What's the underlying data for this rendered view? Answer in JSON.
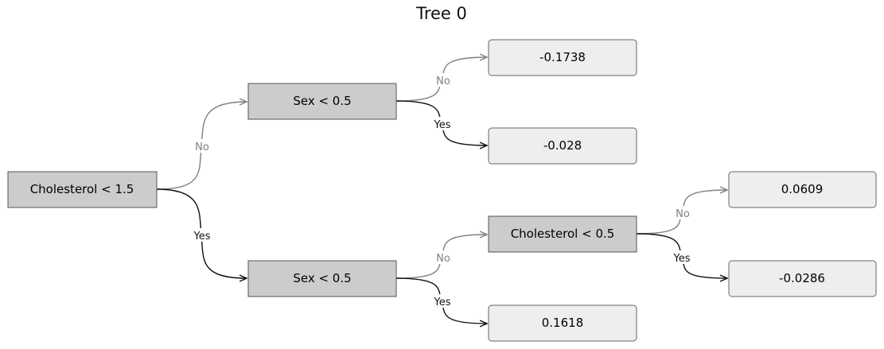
{
  "title": "Tree 0",
  "colors": {
    "split_fill": "#cccccc",
    "leaf_fill": "#eeeeee",
    "edge_no": "#808080",
    "edge_yes": "#111111"
  },
  "nodes": {
    "root": "Cholesterol < 1.5",
    "upper_split": "Sex < 0.5",
    "lower_split": "Sex < 0.5",
    "mid_split": "Cholesterol < 0.5",
    "leaf_1": "-0.1738",
    "leaf_2": "-0.028",
    "leaf_3": "0.0609",
    "leaf_4": "-0.0286",
    "leaf_5": "0.1618"
  },
  "edge_labels": {
    "no": "No",
    "yes": "Yes"
  }
}
